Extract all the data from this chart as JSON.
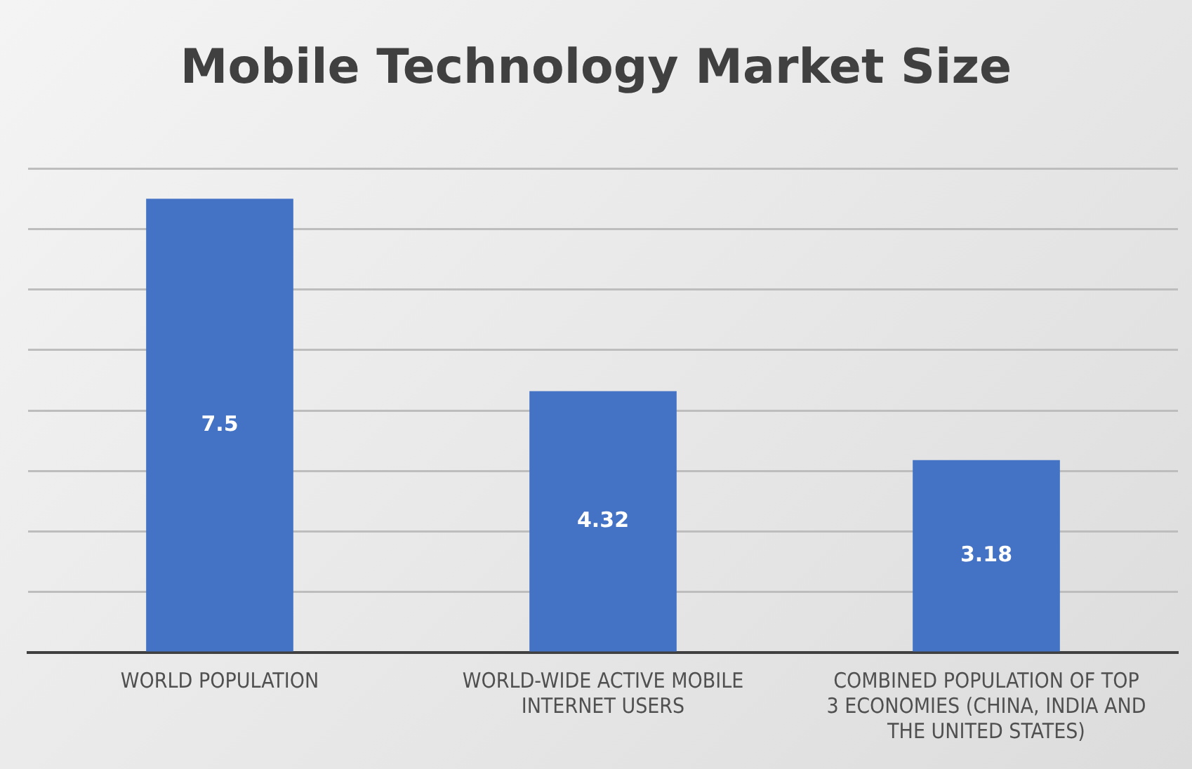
{
  "chart_data": {
    "type": "bar",
    "title": "Mobile Technology Market Size",
    "categories": [
      "WORLD POPULATION",
      "WORLD-WIDE ACTIVE MOBILE INTERNET USERS",
      "COMBINED POPULATION OF TOP 3 ECONOMIES (CHINA, INDIA AND THE UNITED STATES)"
    ],
    "values": [
      7.5,
      4.32,
      3.18
    ],
    "color": "#4472c4",
    "ylim": [
      0,
      8
    ],
    "yticks": [
      {
        "value": 0,
        "label": null
      },
      {
        "value": 1,
        "label": null
      },
      {
        "value": 2,
        "label": null
      },
      {
        "value": 3,
        "label": null
      },
      {
        "value": 4,
        "label": null
      },
      {
        "value": 5,
        "label": null
      },
      {
        "value": 6,
        "label": null
      },
      {
        "value": 7,
        "label": null
      },
      {
        "value": 8,
        "label": null
      }
    ],
    "tick_labels": "x",
    "grid": "y",
    "data_labels": true,
    "legend": false
  }
}
